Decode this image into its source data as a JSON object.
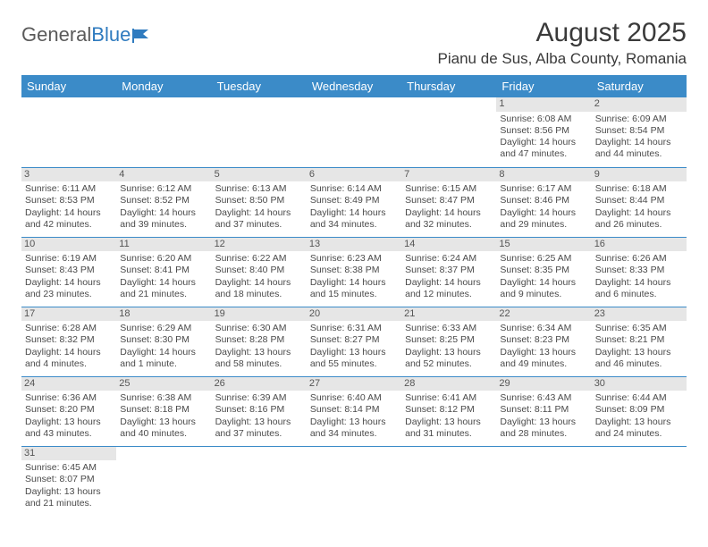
{
  "logo": {
    "text1": "General",
    "text2": "Blue"
  },
  "title": "August 2025",
  "location": "Pianu de Sus, Alba County, Romania",
  "colors": {
    "header_bg": "#3b8bc8",
    "header_fg": "#ffffff",
    "daynum_bg": "#e6e6e6",
    "border": "#3b8bc8"
  },
  "weekdays": [
    "Sunday",
    "Monday",
    "Tuesday",
    "Wednesday",
    "Thursday",
    "Friday",
    "Saturday"
  ],
  "grid": [
    [
      null,
      null,
      null,
      null,
      null,
      {
        "n": "1",
        "sr": "Sunrise: 6:08 AM",
        "ss": "Sunset: 8:56 PM",
        "d1": "Daylight: 14 hours",
        "d2": "and 47 minutes."
      },
      {
        "n": "2",
        "sr": "Sunrise: 6:09 AM",
        "ss": "Sunset: 8:54 PM",
        "d1": "Daylight: 14 hours",
        "d2": "and 44 minutes."
      }
    ],
    [
      {
        "n": "3",
        "sr": "Sunrise: 6:11 AM",
        "ss": "Sunset: 8:53 PM",
        "d1": "Daylight: 14 hours",
        "d2": "and 42 minutes."
      },
      {
        "n": "4",
        "sr": "Sunrise: 6:12 AM",
        "ss": "Sunset: 8:52 PM",
        "d1": "Daylight: 14 hours",
        "d2": "and 39 minutes."
      },
      {
        "n": "5",
        "sr": "Sunrise: 6:13 AM",
        "ss": "Sunset: 8:50 PM",
        "d1": "Daylight: 14 hours",
        "d2": "and 37 minutes."
      },
      {
        "n": "6",
        "sr": "Sunrise: 6:14 AM",
        "ss": "Sunset: 8:49 PM",
        "d1": "Daylight: 14 hours",
        "d2": "and 34 minutes."
      },
      {
        "n": "7",
        "sr": "Sunrise: 6:15 AM",
        "ss": "Sunset: 8:47 PM",
        "d1": "Daylight: 14 hours",
        "d2": "and 32 minutes."
      },
      {
        "n": "8",
        "sr": "Sunrise: 6:17 AM",
        "ss": "Sunset: 8:46 PM",
        "d1": "Daylight: 14 hours",
        "d2": "and 29 minutes."
      },
      {
        "n": "9",
        "sr": "Sunrise: 6:18 AM",
        "ss": "Sunset: 8:44 PM",
        "d1": "Daylight: 14 hours",
        "d2": "and 26 minutes."
      }
    ],
    [
      {
        "n": "10",
        "sr": "Sunrise: 6:19 AM",
        "ss": "Sunset: 8:43 PM",
        "d1": "Daylight: 14 hours",
        "d2": "and 23 minutes."
      },
      {
        "n": "11",
        "sr": "Sunrise: 6:20 AM",
        "ss": "Sunset: 8:41 PM",
        "d1": "Daylight: 14 hours",
        "d2": "and 21 minutes."
      },
      {
        "n": "12",
        "sr": "Sunrise: 6:22 AM",
        "ss": "Sunset: 8:40 PM",
        "d1": "Daylight: 14 hours",
        "d2": "and 18 minutes."
      },
      {
        "n": "13",
        "sr": "Sunrise: 6:23 AM",
        "ss": "Sunset: 8:38 PM",
        "d1": "Daylight: 14 hours",
        "d2": "and 15 minutes."
      },
      {
        "n": "14",
        "sr": "Sunrise: 6:24 AM",
        "ss": "Sunset: 8:37 PM",
        "d1": "Daylight: 14 hours",
        "d2": "and 12 minutes."
      },
      {
        "n": "15",
        "sr": "Sunrise: 6:25 AM",
        "ss": "Sunset: 8:35 PM",
        "d1": "Daylight: 14 hours",
        "d2": "and 9 minutes."
      },
      {
        "n": "16",
        "sr": "Sunrise: 6:26 AM",
        "ss": "Sunset: 8:33 PM",
        "d1": "Daylight: 14 hours",
        "d2": "and 6 minutes."
      }
    ],
    [
      {
        "n": "17",
        "sr": "Sunrise: 6:28 AM",
        "ss": "Sunset: 8:32 PM",
        "d1": "Daylight: 14 hours",
        "d2": "and 4 minutes."
      },
      {
        "n": "18",
        "sr": "Sunrise: 6:29 AM",
        "ss": "Sunset: 8:30 PM",
        "d1": "Daylight: 14 hours",
        "d2": "and 1 minute."
      },
      {
        "n": "19",
        "sr": "Sunrise: 6:30 AM",
        "ss": "Sunset: 8:28 PM",
        "d1": "Daylight: 13 hours",
        "d2": "and 58 minutes."
      },
      {
        "n": "20",
        "sr": "Sunrise: 6:31 AM",
        "ss": "Sunset: 8:27 PM",
        "d1": "Daylight: 13 hours",
        "d2": "and 55 minutes."
      },
      {
        "n": "21",
        "sr": "Sunrise: 6:33 AM",
        "ss": "Sunset: 8:25 PM",
        "d1": "Daylight: 13 hours",
        "d2": "and 52 minutes."
      },
      {
        "n": "22",
        "sr": "Sunrise: 6:34 AM",
        "ss": "Sunset: 8:23 PM",
        "d1": "Daylight: 13 hours",
        "d2": "and 49 minutes."
      },
      {
        "n": "23",
        "sr": "Sunrise: 6:35 AM",
        "ss": "Sunset: 8:21 PM",
        "d1": "Daylight: 13 hours",
        "d2": "and 46 minutes."
      }
    ],
    [
      {
        "n": "24",
        "sr": "Sunrise: 6:36 AM",
        "ss": "Sunset: 8:20 PM",
        "d1": "Daylight: 13 hours",
        "d2": "and 43 minutes."
      },
      {
        "n": "25",
        "sr": "Sunrise: 6:38 AM",
        "ss": "Sunset: 8:18 PM",
        "d1": "Daylight: 13 hours",
        "d2": "and 40 minutes."
      },
      {
        "n": "26",
        "sr": "Sunrise: 6:39 AM",
        "ss": "Sunset: 8:16 PM",
        "d1": "Daylight: 13 hours",
        "d2": "and 37 minutes."
      },
      {
        "n": "27",
        "sr": "Sunrise: 6:40 AM",
        "ss": "Sunset: 8:14 PM",
        "d1": "Daylight: 13 hours",
        "d2": "and 34 minutes."
      },
      {
        "n": "28",
        "sr": "Sunrise: 6:41 AM",
        "ss": "Sunset: 8:12 PM",
        "d1": "Daylight: 13 hours",
        "d2": "and 31 minutes."
      },
      {
        "n": "29",
        "sr": "Sunrise: 6:43 AM",
        "ss": "Sunset: 8:11 PM",
        "d1": "Daylight: 13 hours",
        "d2": "and 28 minutes."
      },
      {
        "n": "30",
        "sr": "Sunrise: 6:44 AM",
        "ss": "Sunset: 8:09 PM",
        "d1": "Daylight: 13 hours",
        "d2": "and 24 minutes."
      }
    ],
    [
      {
        "n": "31",
        "sr": "Sunrise: 6:45 AM",
        "ss": "Sunset: 8:07 PM",
        "d1": "Daylight: 13 hours",
        "d2": "and 21 minutes."
      },
      null,
      null,
      null,
      null,
      null,
      null
    ]
  ]
}
